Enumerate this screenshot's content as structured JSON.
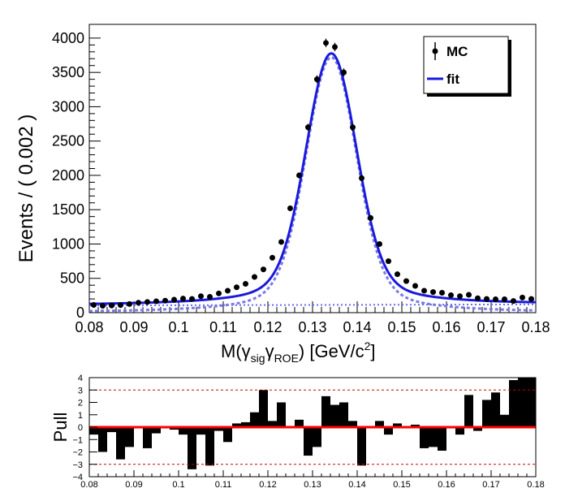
{
  "chart_data": [
    {
      "type": "scatter",
      "title": "",
      "xlabel": "M(γ_sig γ_ROE) [GeV/c^2]",
      "xlabel_parts": {
        "main": "M(γ",
        "sub1": "sig",
        "mid": "γ",
        "sub2": "ROE",
        "rest": ") [GeV/c",
        "sup": "2",
        "end": "]"
      },
      "ylabel": "Events / ( 0.002 )",
      "xlim": [
        0.08,
        0.18
      ],
      "ylim": [
        0,
        4200
      ],
      "x_ticks": [
        "0.08",
        "0.09",
        "0.1",
        "0.11",
        "0.12",
        "0.13",
        "0.14",
        "0.15",
        "0.16",
        "0.17",
        "0.18"
      ],
      "y_ticks": [
        "0",
        "500",
        "1000",
        "1500",
        "2000",
        "2500",
        "3000",
        "3500",
        "4000"
      ],
      "legend": {
        "placement": "top-right",
        "entries": [
          "MC",
          "fit"
        ]
      },
      "series": [
        {
          "name": "MC",
          "style": "points-with-errors",
          "color": "#000000",
          "x": [
            0.081,
            0.083,
            0.085,
            0.087,
            0.089,
            0.091,
            0.093,
            0.095,
            0.097,
            0.099,
            0.101,
            0.103,
            0.105,
            0.107,
            0.109,
            0.111,
            0.113,
            0.115,
            0.117,
            0.119,
            0.121,
            0.123,
            0.125,
            0.127,
            0.129,
            0.131,
            0.133,
            0.135,
            0.137,
            0.139,
            0.141,
            0.143,
            0.145,
            0.147,
            0.149,
            0.151,
            0.153,
            0.155,
            0.157,
            0.159,
            0.161,
            0.163,
            0.165,
            0.167,
            0.169,
            0.171,
            0.173,
            0.175,
            0.177,
            0.179
          ],
          "values": [
            112,
            100,
            105,
            110,
            125,
            145,
            155,
            165,
            175,
            190,
            205,
            200,
            240,
            230,
            280,
            320,
            370,
            420,
            520,
            630,
            800,
            1030,
            1520,
            2000,
            2700,
            3400,
            3930,
            3870,
            3500,
            2700,
            1960,
            1380,
            1000,
            750,
            560,
            460,
            390,
            320,
            300,
            290,
            255,
            240,
            260,
            210,
            200,
            195,
            195,
            170,
            220,
            200
          ]
        },
        {
          "name": "fit",
          "style": "solid-line",
          "color": "#1a1adc"
        }
      ],
      "components": [
        {
          "style": "dashed",
          "color": "#7a7ae6",
          "description_hidden": true
        },
        {
          "style": "dotted",
          "color": "#6a6aee",
          "description_hidden": true
        }
      ]
    },
    {
      "type": "bar",
      "title": "",
      "xlabel": "",
      "ylabel": "Pull",
      "xlim": [
        0.08,
        0.18
      ],
      "ylim": [
        -4,
        4
      ],
      "x_ticks": [
        "0.08",
        "0.09",
        "0.1",
        "0.11",
        "0.12",
        "0.13",
        "0.14",
        "0.15",
        "0.16",
        "0.17",
        "0.18"
      ],
      "y_ticks": [
        "−4",
        "−3",
        "−2",
        "−1",
        "0",
        "1",
        "2",
        "3",
        "4"
      ],
      "reference_lines": [
        3,
        -3
      ],
      "zero_line_color": "#ff0000",
      "bar_color": "#000000",
      "bin_width": 0.002,
      "x": [
        0.081,
        0.083,
        0.085,
        0.087,
        0.089,
        0.091,
        0.093,
        0.095,
        0.097,
        0.099,
        0.101,
        0.103,
        0.105,
        0.107,
        0.109,
        0.111,
        0.113,
        0.115,
        0.117,
        0.119,
        0.121,
        0.123,
        0.125,
        0.127,
        0.129,
        0.131,
        0.133,
        0.135,
        0.137,
        0.139,
        0.141,
        0.143,
        0.145,
        0.147,
        0.149,
        0.151,
        0.153,
        0.155,
        0.157,
        0.159,
        0.161,
        0.163,
        0.165,
        0.167,
        0.169,
        0.171,
        0.173,
        0.175,
        0.177,
        0.179
      ],
      "values": [
        -0.6,
        -2.0,
        -0.4,
        -2.6,
        -1.6,
        -0.1,
        -1.7,
        -0.5,
        -0.1,
        -0.2,
        -0.6,
        -3.4,
        -0.6,
        -3.1,
        -0.3,
        -1.2,
        0.3,
        0.4,
        1.2,
        3.0,
        0.5,
        2.0,
        0.1,
        0.6,
        -2.3,
        -1.6,
        2.5,
        1.8,
        2.0,
        0.5,
        -3.1,
        0.1,
        0.5,
        -0.6,
        0.3,
        -0.1,
        0.2,
        -1.7,
        -1.6,
        -1.9,
        -0.1,
        -0.6,
        2.6,
        -0.3,
        2.2,
        2.8,
        1.0,
        3.8,
        4.2,
        4.2
      ]
    }
  ]
}
